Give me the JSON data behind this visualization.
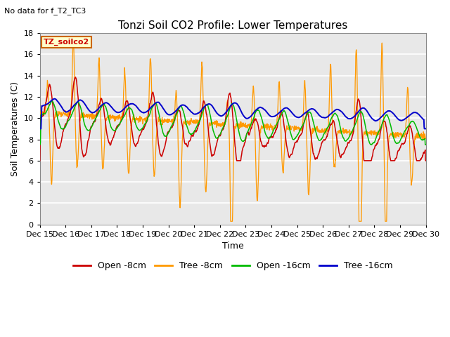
{
  "title": "Tonzi Soil CO2 Profile: Lower Temperatures",
  "subtitle": "No data for f_T2_TC3",
  "ylabel": "Soil Temperatures (C)",
  "xlabel": "Time",
  "legend_label": "TZ_soilco2",
  "ylim": [
    0,
    18
  ],
  "yticks": [
    0,
    2,
    4,
    6,
    8,
    10,
    12,
    14,
    16,
    18
  ],
  "xtick_labels": [
    "Dec 15",
    "Dec 16",
    "Dec 17",
    "Dec 18",
    "Dec 19",
    "Dec 20",
    "Dec 21",
    "Dec 22",
    "Dec 23",
    "Dec 24",
    "Dec 25",
    "Dec 26",
    "Dec 27",
    "Dec 28",
    "Dec 29",
    "Dec 30"
  ],
  "plot_bg_color": "#e8e8e8",
  "grid_color": "#ffffff",
  "series": {
    "open_8cm": {
      "color": "#cc0000",
      "label": "Open -8cm"
    },
    "tree_8cm": {
      "color": "#ff9900",
      "label": "Tree -8cm"
    },
    "open_16cm": {
      "color": "#00bb00",
      "label": "Open -16cm"
    },
    "tree_16cm": {
      "color": "#0000cc",
      "label": "Tree -16cm"
    }
  },
  "title_fontsize": 11,
  "axis_fontsize": 9,
  "tick_fontsize": 8,
  "legend_fontsize": 9,
  "subtitle_fontsize": 8
}
